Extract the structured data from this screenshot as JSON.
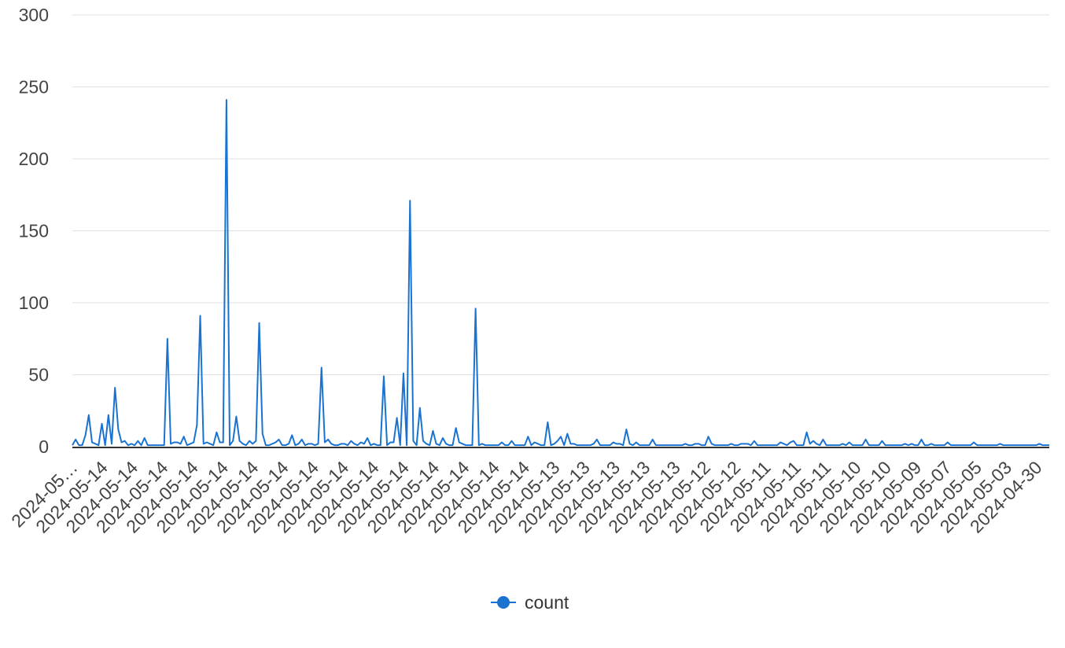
{
  "chart_data": {
    "type": "line",
    "title": "",
    "xlabel": "",
    "ylabel": "",
    "ylim": [
      0,
      300
    ],
    "y_ticks": [
      "0",
      "50",
      "100",
      "150",
      "200",
      "250",
      "300"
    ],
    "grid": true,
    "legend_position": "bottom",
    "x_tick_labels": [
      "2024-05…",
      "2024-05-14",
      "2024-05-14",
      "2024-05-14",
      "2024-05-14",
      "2024-05-14",
      "2024-05-14",
      "2024-05-14",
      "2024-05-14",
      "2024-05-14",
      "2024-05-14",
      "2024-05-14",
      "2024-05-14",
      "2024-05-14",
      "2024-05-14",
      "2024-05-14",
      "2024-05-13",
      "2024-05-13",
      "2024-05-13",
      "2024-05-13",
      "2024-05-13",
      "2024-05-12",
      "2024-05-12",
      "2024-05-11",
      "2024-05-11",
      "2024-05-11",
      "2024-05-10",
      "2024-05-10",
      "2024-05-09",
      "2024-05-07",
      "2024-05-05",
      "2024-05-03",
      "2024-04-30"
    ],
    "series": [
      {
        "name": "count",
        "color": "#1a73d1",
        "values": [
          1,
          5,
          1,
          1,
          8,
          22,
          3,
          2,
          1,
          16,
          1,
          22,
          2,
          41,
          12,
          3,
          4,
          1,
          2,
          1,
          4,
          1,
          6,
          1,
          1,
          1,
          1,
          1,
          1,
          75,
          2,
          3,
          3,
          2,
          7,
          1,
          2,
          3,
          15,
          91,
          2,
          3,
          2,
          1,
          10,
          3,
          3,
          241,
          1,
          4,
          21,
          4,
          2,
          1,
          4,
          2,
          4,
          86,
          9,
          1,
          1,
          2,
          3,
          5,
          1,
          1,
          2,
          8,
          1,
          2,
          5,
          1,
          2,
          2,
          1,
          2,
          55,
          3,
          5,
          2,
          1,
          1,
          2,
          2,
          1,
          4,
          2,
          1,
          3,
          2,
          6,
          1,
          2,
          1,
          1,
          49,
          1,
          3,
          3,
          20,
          1,
          51,
          1,
          171,
          4,
          1,
          27,
          4,
          2,
          1,
          11,
          2,
          1,
          6,
          2,
          1,
          1,
          13,
          3,
          2,
          1,
          1,
          1,
          96,
          1,
          2,
          1,
          1,
          1,
          1,
          1,
          3,
          1,
          1,
          4,
          1,
          1,
          1,
          1,
          7,
          1,
          3,
          2,
          1,
          1,
          17,
          1,
          2,
          4,
          7,
          1,
          9,
          2,
          2,
          1,
          1,
          1,
          1,
          1,
          2,
          5,
          1,
          1,
          1,
          1,
          3,
          2,
          2,
          1,
          12,
          2,
          1,
          3,
          1,
          1,
          1,
          1,
          5,
          1,
          1,
          1,
          1,
          1,
          1,
          1,
          1,
          1,
          2,
          1,
          1,
          2,
          2,
          1,
          1,
          7,
          2,
          1,
          1,
          1,
          1,
          1,
          2,
          1,
          1,
          2,
          2,
          2,
          1,
          4,
          1,
          1,
          1,
          1,
          1,
          1,
          1,
          3,
          2,
          1,
          3,
          4,
          1,
          1,
          1,
          10,
          2,
          4,
          2,
          1,
          5,
          1,
          1,
          1,
          1,
          1,
          2,
          1,
          3,
          1,
          1,
          1,
          1,
          5,
          1,
          1,
          1,
          1,
          4,
          1,
          1,
          1,
          1,
          1,
          1,
          2,
          1,
          2,
          1,
          1,
          5,
          1,
          1,
          2,
          1,
          1,
          1,
          1,
          3,
          1,
          1,
          1,
          1,
          1,
          1,
          1,
          3,
          1,
          1,
          1,
          1,
          1,
          1,
          1,
          2,
          1,
          1,
          1,
          1,
          1,
          1,
          1,
          1,
          1,
          1,
          1,
          2,
          1,
          1,
          1
        ]
      }
    ]
  }
}
